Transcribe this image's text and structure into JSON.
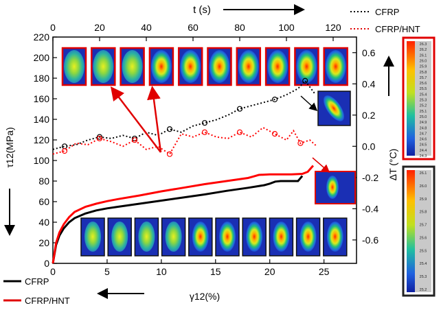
{
  "chart_data": {
    "type": "line",
    "xlabel": "γ12(%)",
    "ylabel": "τ12(MPa)",
    "x_top_label": "t (s)",
    "y_right_label": "ΔT (°C)",
    "x_ticks": [
      "0",
      "5",
      "10",
      "15",
      "20",
      "25"
    ],
    "y_ticks": [
      "0",
      "20",
      "40",
      "60",
      "80",
      "100",
      "120",
      "140",
      "160",
      "180",
      "200",
      "220"
    ],
    "x_top_ticks": [
      "0",
      "20",
      "40",
      "60",
      "80",
      "100",
      "120"
    ],
    "y_right_ticks": [
      "-0.6",
      "-0.4",
      "-0.2",
      "0.0",
      "0.2",
      "0.4",
      "0.6"
    ],
    "xlim": [
      0,
      28
    ],
    "ylim": [
      0,
      220
    ],
    "x_top_lim": [
      0,
      130
    ],
    "y_right_lim": [
      -0.75,
      0.7
    ],
    "series": [
      {
        "name": "CFRP",
        "axis": "stress",
        "style": "solid",
        "color": "#000000",
        "x": [
          0,
          0.3,
          0.6,
          1,
          1.5,
          2,
          3,
          4,
          5,
          6,
          8,
          10,
          12,
          14,
          16,
          18,
          19.5,
          20,
          20.5,
          21,
          22,
          22.6,
          22.8,
          23
        ],
        "y": [
          0,
          18,
          27,
          34,
          40,
          44,
          48.5,
          51.5,
          53.5,
          55,
          58,
          61,
          64,
          67,
          70.5,
          73.5,
          76,
          77.5,
          79.5,
          80,
          80,
          80,
          82.5,
          85
        ]
      },
      {
        "name": "CFRP/HNT",
        "axis": "stress",
        "style": "solid",
        "color": "#ff0000",
        "x": [
          0,
          0.3,
          0.6,
          1,
          1.5,
          2,
          3,
          4,
          5,
          6,
          8,
          10,
          12,
          14,
          16,
          18,
          18.5,
          19,
          20,
          21,
          22,
          23,
          23.5,
          24
        ],
        "y": [
          0,
          20,
          30,
          38,
          45,
          50,
          55,
          58,
          60.5,
          62.5,
          66,
          70,
          73.5,
          77,
          80,
          83,
          84.5,
          86,
          86.5,
          86.5,
          86.5,
          87,
          89,
          95
        ]
      },
      {
        "name": "CFRP",
        "axis": "temperature",
        "style": "dotted",
        "color": "#000000",
        "x": [
          0,
          5,
          10,
          15,
          20,
          25,
          30,
          35,
          40,
          45,
          50,
          55,
          60,
          65,
          70,
          75,
          80,
          85,
          90,
          95,
          100,
          105,
          108,
          112
        ],
        "y": [
          -0.02,
          0.0,
          0.01,
          0.04,
          0.06,
          0.05,
          0.07,
          0.05,
          0.09,
          0.07,
          0.11,
          0.09,
          0.13,
          0.15,
          0.17,
          0.2,
          0.24,
          0.26,
          0.28,
          0.3,
          0.33,
          0.37,
          0.42,
          0.34
        ]
      },
      {
        "name": "CFRP/HNT",
        "axis": "temperature",
        "style": "dotted",
        "color": "#ff0000",
        "x": [
          0,
          5,
          10,
          15,
          20,
          25,
          30,
          35,
          40,
          45,
          50,
          55,
          60,
          65,
          70,
          75,
          80,
          85,
          90,
          95,
          100,
          103,
          106,
          110,
          113
        ],
        "y": [
          -0.05,
          -0.03,
          0.02,
          0.01,
          0.05,
          0.03,
          0.0,
          0.04,
          -0.02,
          0.0,
          -0.05,
          0.08,
          0.06,
          0.09,
          0.06,
          0.05,
          0.09,
          0.06,
          0.12,
          0.08,
          0.04,
          0.1,
          0.02,
          0.04,
          0.0
        ]
      }
    ],
    "legend_bottom": [
      "CFRP",
      "CFRP/HNT"
    ],
    "legend_top": [
      "CFRP",
      "CFRP/HNT"
    ]
  },
  "colorbars": {
    "top": [
      "26.3",
      "26.2",
      "26.1",
      "26.0",
      "25.9",
      "25.8",
      "25.7",
      "25.6",
      "25.5",
      "25.4",
      "25.3",
      "25.2",
      "25.1",
      "25.0",
      "24.9",
      "24.8",
      "24.7",
      "24.6",
      "24.5",
      "24.4",
      "24.3"
    ],
    "bottom": [
      "26.1",
      "26.0",
      "25.9",
      "25.8",
      "25.7",
      "25.6",
      "25.5",
      "25.4",
      "25.3",
      "25.2"
    ]
  },
  "colors": {
    "cfrp": "#000000",
    "cfrp_hnt": "#ff0000",
    "thermal_bg": "#1a2fb4"
  }
}
